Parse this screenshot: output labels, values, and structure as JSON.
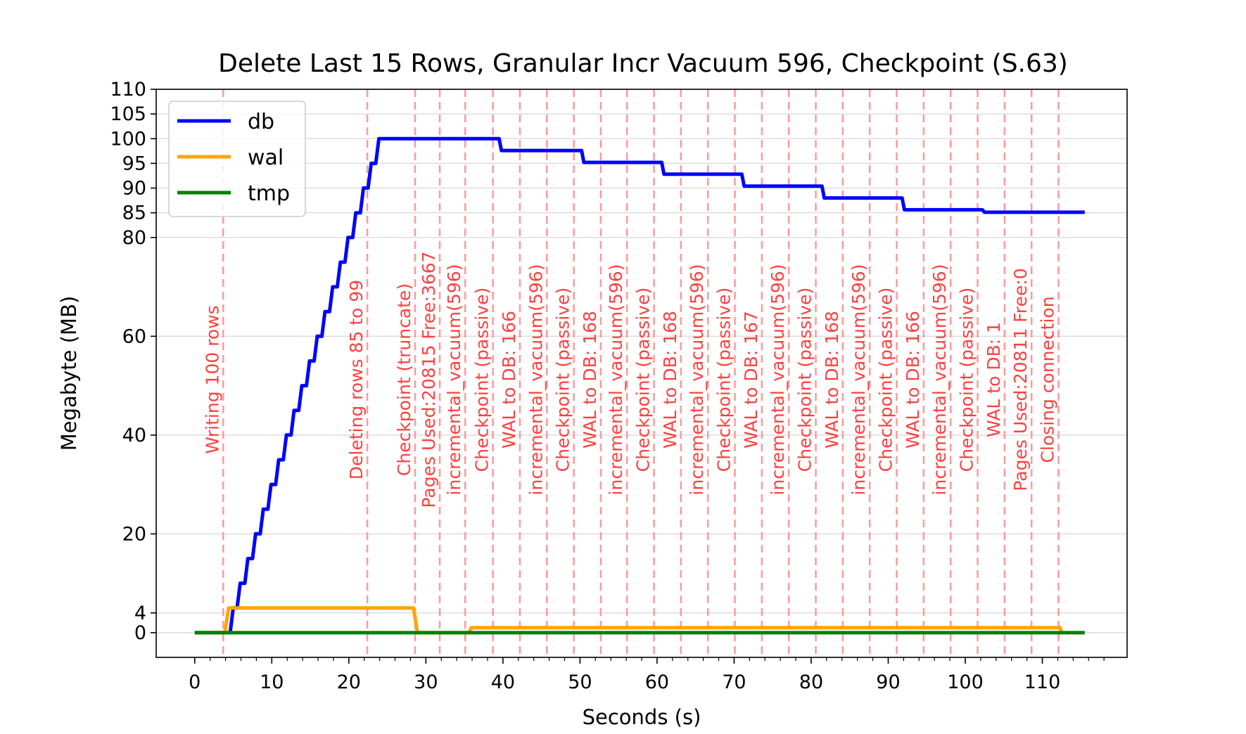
{
  "chart_data": {
    "type": "line",
    "title": "Delete Last 15 Rows, Granular Incr Vacuum 596, Checkpoint (S.63)",
    "xlabel": "Seconds (s)",
    "ylabel": "Megabyte (MB)",
    "xlim": [
      -5,
      121
    ],
    "ylim": [
      -5,
      110
    ],
    "xticks": [
      0,
      10,
      20,
      30,
      40,
      50,
      60,
      70,
      80,
      90,
      100,
      110
    ],
    "yticks": [
      0,
      4,
      20,
      40,
      60,
      80,
      85,
      90,
      95,
      100,
      105,
      110
    ],
    "grid": "horizontal",
    "legend_position": "top-left",
    "series": [
      {
        "name": "db",
        "color": "#0000ff",
        "points": [
          [
            0,
            0
          ],
          [
            4.6,
            0
          ],
          [
            5,
            5
          ],
          [
            5.5,
            5
          ],
          [
            5.9,
            10
          ],
          [
            6.5,
            10
          ],
          [
            6.9,
            15
          ],
          [
            7.5,
            15
          ],
          [
            7.9,
            20
          ],
          [
            8.5,
            20
          ],
          [
            8.9,
            25
          ],
          [
            9.5,
            25
          ],
          [
            9.9,
            30
          ],
          [
            10.5,
            30
          ],
          [
            10.9,
            35
          ],
          [
            11.5,
            35
          ],
          [
            11.9,
            40
          ],
          [
            12.5,
            40
          ],
          [
            12.9,
            45
          ],
          [
            13.5,
            45
          ],
          [
            13.9,
            50
          ],
          [
            14.5,
            50
          ],
          [
            14.9,
            55
          ],
          [
            15.5,
            55
          ],
          [
            15.9,
            60
          ],
          [
            16.5,
            60
          ],
          [
            16.9,
            65
          ],
          [
            17.5,
            65
          ],
          [
            17.9,
            70
          ],
          [
            18.5,
            70
          ],
          [
            18.9,
            75
          ],
          [
            19.5,
            75
          ],
          [
            19.9,
            80
          ],
          [
            20.5,
            80
          ],
          [
            20.9,
            85
          ],
          [
            21.5,
            85
          ],
          [
            21.9,
            90
          ],
          [
            22.5,
            90
          ],
          [
            22.9,
            95
          ],
          [
            23.5,
            95
          ],
          [
            23.9,
            100
          ],
          [
            39.5,
            100
          ],
          [
            39.8,
            97.6
          ],
          [
            50.2,
            97.6
          ],
          [
            50.5,
            95.2
          ],
          [
            60.6,
            95.2
          ],
          [
            60.9,
            92.8
          ],
          [
            71,
            92.8
          ],
          [
            71.3,
            90.4
          ],
          [
            81.4,
            90.4
          ],
          [
            81.7,
            88
          ],
          [
            91.8,
            88
          ],
          [
            92.1,
            85.6
          ],
          [
            102.2,
            85.6
          ],
          [
            102.5,
            85.1
          ],
          [
            115.5,
            85.1
          ]
        ]
      },
      {
        "name": "wal",
        "color": "#ffa500",
        "points": [
          [
            0,
            0
          ],
          [
            3.9,
            0
          ],
          [
            4.4,
            5
          ],
          [
            28.4,
            5
          ],
          [
            28.9,
            0
          ],
          [
            35.6,
            0
          ],
          [
            35.9,
            1
          ],
          [
            112.3,
            1
          ],
          [
            112.5,
            0
          ]
        ]
      },
      {
        "name": "tmp",
        "color": "#008000",
        "points": [
          [
            0,
            0
          ],
          [
            115.5,
            0
          ]
        ]
      }
    ],
    "events": [
      {
        "x": 3.7,
        "label": "Writing 100 rows"
      },
      {
        "x": 22.4,
        "label": "Deleting rows 85 to 99"
      },
      {
        "x": 28.6,
        "label": "Checkpoint (truncate)"
      },
      {
        "x": 31.8,
        "label": "Pages Used:20815 Free:3667"
      },
      {
        "x": 35.1,
        "label": "incremental_vacuum(596)"
      },
      {
        "x": 38.7,
        "label": "Checkpoint (passive)"
      },
      {
        "x": 42.2,
        "label": "WAL to DB: 166"
      },
      {
        "x": 45.7,
        "label": "incremental_vacuum(596)"
      },
      {
        "x": 49.2,
        "label": "Checkpoint (passive)"
      },
      {
        "x": 52.7,
        "label": "WAL to DB: 168"
      },
      {
        "x": 56.1,
        "label": "incremental_vacuum(596)"
      },
      {
        "x": 59.6,
        "label": "Checkpoint (passive)"
      },
      {
        "x": 63.1,
        "label": "WAL to DB: 168"
      },
      {
        "x": 66.6,
        "label": "incremental_vacuum(596)"
      },
      {
        "x": 70.1,
        "label": "Checkpoint (passive)"
      },
      {
        "x": 73.6,
        "label": "WAL to DB: 167"
      },
      {
        "x": 77.1,
        "label": "incremental_vacuum(596)"
      },
      {
        "x": 80.6,
        "label": "Checkpoint (passive)"
      },
      {
        "x": 84.1,
        "label": "WAL to DB: 168"
      },
      {
        "x": 87.6,
        "label": "incremental_vacuum(596)"
      },
      {
        "x": 91.1,
        "label": "Checkpoint (passive)"
      },
      {
        "x": 94.6,
        "label": "WAL to DB: 166"
      },
      {
        "x": 98.1,
        "label": "incremental_vacuum(596)"
      },
      {
        "x": 101.6,
        "label": "Checkpoint (passive)"
      },
      {
        "x": 105.1,
        "label": "WAL to DB: 1"
      },
      {
        "x": 108.6,
        "label": "Pages Used:20811 Free:0"
      },
      {
        "x": 112.1,
        "label": "Closing connection"
      }
    ],
    "event_color": "#ff9999"
  }
}
